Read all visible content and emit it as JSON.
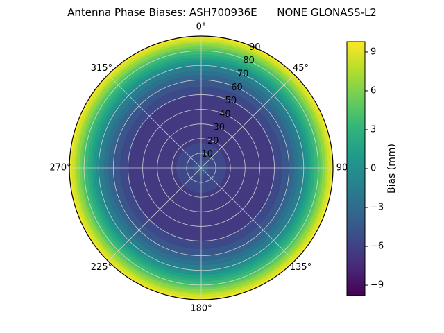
{
  "title": "Antenna Phase Biases: ASH700936E      NONE GLONASS-L2",
  "chart_data": {
    "type": "heatmap",
    "projection": "polar",
    "theta_zero": "top",
    "theta_direction": "clockwise",
    "title": "Antenna Phase Biases: ASH700936E      NONE GLONASS-L2",
    "colormap": "viridis",
    "grid": true,
    "grid_color": "#d9d9d9",
    "outline_color": "#000000",
    "rmax": 90,
    "angular_ticks_deg": [
      0,
      45,
      90,
      135,
      180,
      225,
      270,
      315
    ],
    "angular_tick_labels": [
      "0°",
      "45°",
      "90",
      "135°",
      "180°",
      "225°",
      "270°",
      "315°"
    ],
    "radial_ticks": [
      10,
      20,
      30,
      40,
      50,
      60,
      70,
      80,
      90
    ],
    "radial_tick_labels": [
      "10",
      "20",
      "30",
      "40",
      "50",
      "60",
      "70",
      "80",
      "90"
    ],
    "radial_label_angle_deg": 24,
    "radial_profile": {
      "comment": "bias (mm) vs zenith angle (deg); pattern is azimuth-symmetric rings",
      "zenith_deg": [
        0,
        10,
        20,
        30,
        40,
        50,
        60,
        70,
        80,
        90
      ],
      "bias_mm": [
        -4.5,
        -5.5,
        -6.2,
        -6.6,
        -6.6,
        -6.0,
        -4.2,
        -1.0,
        4.0,
        9.8
      ]
    },
    "contour_level_step_mm": 1.0,
    "colorbar": {
      "label": "Bias (mm)",
      "ticks": [
        9,
        6,
        3,
        0,
        -3,
        -6,
        -9
      ],
      "tick_labels": [
        "9",
        "6",
        "3",
        "0",
        "−3",
        "−6",
        "−9"
      ],
      "vmin": -9.8,
      "vmax": 9.8,
      "position": "right"
    },
    "viridis_stops": [
      [
        0.0,
        "#440154"
      ],
      [
        0.11,
        "#482878"
      ],
      [
        0.22,
        "#3e4989"
      ],
      [
        0.33,
        "#31688e"
      ],
      [
        0.44,
        "#26828e"
      ],
      [
        0.56,
        "#1f9e89"
      ],
      [
        0.67,
        "#35b779"
      ],
      [
        0.78,
        "#6ece58"
      ],
      [
        0.89,
        "#b5de2b"
      ],
      [
        1.0,
        "#fde725"
      ]
    ]
  }
}
